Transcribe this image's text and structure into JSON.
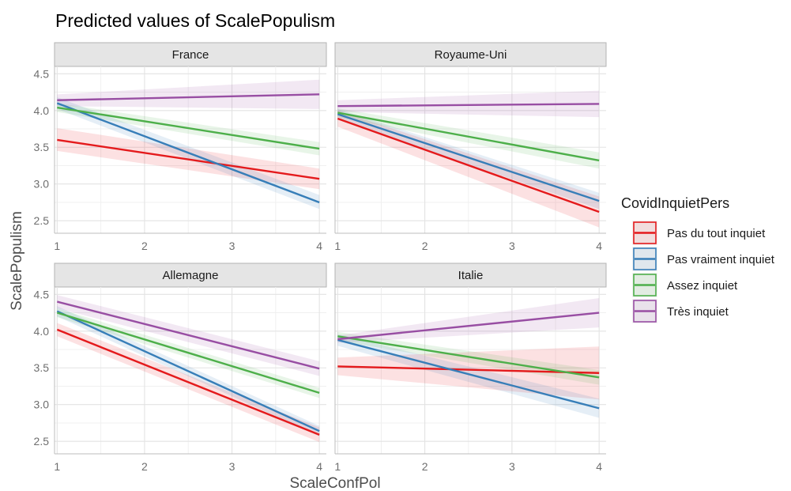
{
  "chart_data": {
    "type": "line",
    "title": "Predicted values of ScalePopulism",
    "xlabel": "ScaleConfPol",
    "ylabel": "ScalePopulism",
    "x_ticks": [
      1,
      2,
      3,
      4
    ],
    "y_ticks": [
      "2.5",
      "3.0",
      "3.5",
      "4.0",
      "4.5"
    ],
    "xlim": [
      0.97,
      4.08
    ],
    "ylim": [
      2.33,
      4.6
    ],
    "grid": true,
    "legend": {
      "title": "CovidInquietPers",
      "placement": "right",
      "entries": [
        "Pas du tout inquiet",
        "Pas vraiment inquiet",
        "Assez inquiet",
        "Très inquiet"
      ]
    },
    "colors": {
      "Pas du tout inquiet": "#e41a1c",
      "Pas vraiment inquiet": "#377eb8",
      "Assez inquiet": "#4daf4a",
      "Très inquiet": "#984ea3"
    },
    "panels": [
      {
        "name": "France",
        "series": [
          {
            "name": "Pas du tout inquiet",
            "x": [
              1,
              4
            ],
            "y": [
              3.6,
              3.07
            ],
            "lower": [
              3.45,
              2.93
            ],
            "upper": [
              3.76,
              3.21
            ]
          },
          {
            "name": "Pas vraiment inquiet",
            "x": [
              1,
              4
            ],
            "y": [
              4.1,
              2.75
            ],
            "lower": [
              4.02,
              2.66
            ],
            "upper": [
              4.18,
              2.85
            ]
          },
          {
            "name": "Assez inquiet",
            "x": [
              1,
              4
            ],
            "y": [
              4.04,
              3.48
            ],
            "lower": [
              3.98,
              3.39
            ],
            "upper": [
              4.1,
              3.57
            ]
          },
          {
            "name": "Très inquiet",
            "x": [
              1,
              4
            ],
            "y": [
              4.14,
              4.22
            ],
            "lower": [
              4.06,
              4.02
            ],
            "upper": [
              4.22,
              4.42
            ]
          }
        ]
      },
      {
        "name": "Royaume-Uni",
        "series": [
          {
            "name": "Pas du tout inquiet",
            "x": [
              1,
              4
            ],
            "y": [
              3.89,
              2.62
            ],
            "lower": [
              3.78,
              2.41
            ],
            "upper": [
              4.0,
              2.83
            ]
          },
          {
            "name": "Pas vraiment inquiet",
            "x": [
              1,
              4
            ],
            "y": [
              3.95,
              2.77
            ],
            "lower": [
              3.88,
              2.66
            ],
            "upper": [
              4.02,
              2.88
            ]
          },
          {
            "name": "Assez inquiet",
            "x": [
              1,
              4
            ],
            "y": [
              3.97,
              3.32
            ],
            "lower": [
              3.91,
              3.21
            ],
            "upper": [
              4.03,
              3.43
            ]
          },
          {
            "name": "Très inquiet",
            "x": [
              1,
              4
            ],
            "y": [
              4.06,
              4.09
            ],
            "lower": [
              3.98,
              3.91
            ],
            "upper": [
              4.14,
              4.27
            ]
          }
        ]
      },
      {
        "name": "Allemagne",
        "series": [
          {
            "name": "Pas du tout inquiet",
            "x": [
              1,
              4
            ],
            "y": [
              4.02,
              2.59
            ],
            "lower": [
              3.93,
              2.49
            ],
            "upper": [
              4.11,
              2.69
            ]
          },
          {
            "name": "Pas vraiment inquiet",
            "x": [
              1,
              4
            ],
            "y": [
              4.27,
              2.64
            ],
            "lower": [
              4.2,
              2.57
            ],
            "upper": [
              4.34,
              2.71
            ]
          },
          {
            "name": "Assez inquiet",
            "x": [
              1,
              4
            ],
            "y": [
              4.25,
              3.16
            ],
            "lower": [
              4.19,
              3.09
            ],
            "upper": [
              4.31,
              3.23
            ]
          },
          {
            "name": "Très inquiet",
            "x": [
              1,
              4
            ],
            "y": [
              4.4,
              3.49
            ],
            "lower": [
              4.31,
              3.39
            ],
            "upper": [
              4.49,
              3.59
            ]
          }
        ]
      },
      {
        "name": "Italie",
        "series": [
          {
            "name": "Pas du tout inquiet",
            "x": [
              1,
              4
            ],
            "y": [
              3.52,
              3.43
            ],
            "lower": [
              3.4,
              3.07
            ],
            "upper": [
              3.64,
              3.79
            ]
          },
          {
            "name": "Pas vraiment inquiet",
            "x": [
              1,
              4
            ],
            "y": [
              3.88,
              2.95
            ],
            "lower": [
              3.8,
              2.82
            ],
            "upper": [
              3.96,
              3.08
            ]
          },
          {
            "name": "Assez inquiet",
            "x": [
              1,
              4
            ],
            "y": [
              3.93,
              3.37
            ],
            "lower": [
              3.87,
              3.27
            ],
            "upper": [
              3.99,
              3.47
            ]
          },
          {
            "name": "Très inquiet",
            "x": [
              1,
              4
            ],
            "y": [
              3.89,
              4.25
            ],
            "lower": [
              3.84,
              4.05
            ],
            "upper": [
              3.94,
              4.45
            ]
          }
        ]
      }
    ]
  }
}
